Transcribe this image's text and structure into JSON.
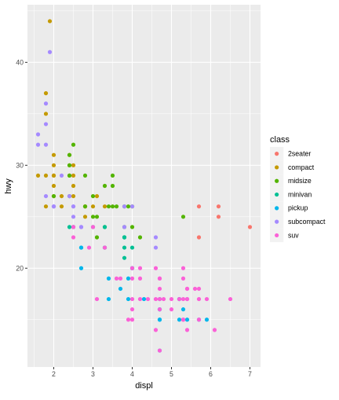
{
  "chart_data": {
    "type": "scatter",
    "xlabel": "displ",
    "ylabel": "hwy",
    "xlim": [
      1.33,
      7.27
    ],
    "ylim": [
      10.4,
      45.6
    ],
    "x_ticks": [
      2,
      3,
      4,
      5,
      6,
      7
    ],
    "y_ticks": [
      20,
      30,
      40
    ],
    "x_tick_labels": [
      "2",
      "3",
      "4",
      "5",
      "6",
      "7"
    ],
    "y_tick_labels": [
      "20",
      "30",
      "40"
    ],
    "grid": true,
    "legend": {
      "title": "class",
      "placement": "right",
      "entries": [
        "2seater",
        "compact",
        "midsize",
        "minivan",
        "pickup",
        "subcompact",
        "suv"
      ]
    },
    "colors": {
      "panel_background": "#ebebeb",
      "grid": "#ffffff",
      "2seater": "#F8766D",
      "compact": "#C49A00",
      "midsize": "#53B400",
      "minivan": "#00C094",
      "pickup": "#00B6EB",
      "subcompact": "#A58AFF",
      "suv": "#FB61D7"
    },
    "series": [
      {
        "name": "2seater",
        "points": [
          [
            5.7,
            26
          ],
          [
            6.2,
            26
          ],
          [
            6.2,
            25
          ],
          [
            5.7,
            23
          ],
          [
            7.0,
            24
          ]
        ]
      },
      {
        "name": "compact",
        "points": [
          [
            1.8,
            29
          ],
          [
            1.8,
            26
          ],
          [
            2.0,
            30
          ],
          [
            2.0,
            31
          ],
          [
            2.8,
            26
          ],
          [
            2.8,
            25
          ],
          [
            3.1,
            27
          ],
          [
            1.8,
            37
          ],
          [
            1.8,
            35
          ],
          [
            2.0,
            29
          ],
          [
            2.2,
            27
          ],
          [
            2.4,
            31
          ],
          [
            2.4,
            30
          ],
          [
            2.5,
            30
          ],
          [
            2.5,
            29
          ],
          [
            2.5,
            27
          ],
          [
            2.2,
            26
          ],
          [
            2.4,
            29
          ],
          [
            3.0,
            26
          ],
          [
            3.3,
            26
          ],
          [
            2.0,
            29
          ],
          [
            2.0,
            28
          ],
          [
            2.8,
            26
          ],
          [
            1.9,
            44
          ],
          [
            2.5,
            28
          ],
          [
            2.0,
            27
          ],
          [
            1.6,
            29
          ]
        ]
      },
      {
        "name": "midsize",
        "points": [
          [
            2.4,
            31
          ],
          [
            2.4,
            30
          ],
          [
            2.5,
            32
          ],
          [
            3.0,
            27
          ],
          [
            3.5,
            29
          ],
          [
            3.3,
            28
          ],
          [
            3.8,
            26
          ],
          [
            3.5,
            26
          ],
          [
            3.0,
            25
          ],
          [
            2.4,
            29
          ],
          [
            2.4,
            27
          ],
          [
            3.1,
            25
          ],
          [
            3.4,
            26
          ],
          [
            3.8,
            24
          ],
          [
            3.9,
            26
          ],
          [
            4.0,
            24
          ],
          [
            4.2,
            23
          ],
          [
            5.3,
            25
          ],
          [
            2.8,
            26
          ],
          [
            3.5,
            28
          ],
          [
            3.6,
            26
          ],
          [
            4.0,
            26
          ],
          [
            3.3,
            24
          ],
          [
            3.1,
            23
          ],
          [
            3.8,
            23
          ],
          [
            2.5,
            24
          ],
          [
            2.0,
            27
          ],
          [
            2.8,
            29
          ]
        ]
      },
      {
        "name": "minivan",
        "points": [
          [
            2.4,
            24
          ],
          [
            3.0,
            24
          ],
          [
            3.3,
            24
          ],
          [
            3.3,
            22
          ],
          [
            3.8,
            21
          ],
          [
            3.8,
            23
          ],
          [
            3.8,
            22
          ],
          [
            4.0,
            20
          ],
          [
            3.3,
            22
          ],
          [
            3.8,
            23
          ],
          [
            4.0,
            22
          ]
        ]
      },
      {
        "name": "pickup",
        "points": [
          [
            2.7,
            20
          ],
          [
            2.7,
            22
          ],
          [
            3.4,
            19
          ],
          [
            3.4,
            17
          ],
          [
            3.7,
            18
          ],
          [
            3.9,
            17
          ],
          [
            4.0,
            20
          ],
          [
            4.3,
            17
          ],
          [
            4.7,
            16
          ],
          [
            4.7,
            15
          ],
          [
            5.2,
            15
          ],
          [
            5.2,
            17
          ],
          [
            5.7,
            15
          ],
          [
            5.9,
            15
          ],
          [
            4.7,
            15
          ],
          [
            4.7,
            16
          ],
          [
            4.7,
            17
          ],
          [
            5.4,
            15
          ],
          [
            5.3,
            16
          ],
          [
            5.2,
            17
          ],
          [
            3.9,
            19
          ],
          [
            4.7,
            12
          ],
          [
            2.7,
            22
          ]
        ]
      },
      {
        "name": "subcompact",
        "points": [
          [
            1.9,
            41
          ],
          [
            1.6,
            33
          ],
          [
            1.6,
            32
          ],
          [
            1.8,
            36
          ],
          [
            2.0,
            26
          ],
          [
            1.8,
            32
          ],
          [
            2.5,
            25
          ],
          [
            2.2,
            29
          ],
          [
            2.0,
            26
          ],
          [
            2.4,
            27
          ],
          [
            1.8,
            27
          ],
          [
            2.7,
            24
          ],
          [
            2.0,
            26
          ],
          [
            2.5,
            26
          ],
          [
            1.8,
            34
          ],
          [
            3.8,
            26
          ],
          [
            4.6,
            23
          ],
          [
            4.6,
            22
          ],
          [
            5.4,
            17
          ],
          [
            2.5,
            24
          ],
          [
            2.5,
            26
          ],
          [
            2.7,
            24
          ],
          [
            3.8,
            24
          ],
          [
            4.0,
            26
          ]
        ]
      },
      {
        "name": "suv",
        "points": [
          [
            5.3,
            20
          ],
          [
            5.3,
            15
          ],
          [
            5.7,
            18
          ],
          [
            6.5,
            17
          ],
          [
            4.0,
            19
          ],
          [
            4.7,
            12
          ],
          [
            5.9,
            17
          ],
          [
            4.7,
            19
          ],
          [
            4.7,
            19
          ],
          [
            5.2,
            17
          ],
          [
            4.6,
            17
          ],
          [
            5.4,
            17
          ],
          [
            4.0,
            16
          ],
          [
            4.6,
            20
          ],
          [
            5.0,
            17
          ],
          [
            4.2,
            17
          ],
          [
            4.4,
            17
          ],
          [
            5.4,
            18
          ],
          [
            4.7,
            17
          ],
          [
            4.7,
            16
          ],
          [
            4.0,
            15
          ],
          [
            4.0,
            20
          ],
          [
            2.5,
            23
          ],
          [
            2.5,
            24
          ],
          [
            3.3,
            22
          ],
          [
            3.7,
            19
          ],
          [
            3.9,
            15
          ],
          [
            4.7,
            18
          ],
          [
            4.8,
            17
          ],
          [
            5.3,
            19
          ],
          [
            5.4,
            18
          ],
          [
            5.6,
            18
          ],
          [
            5.7,
            15
          ],
          [
            6.1,
            14
          ],
          [
            5.0,
            16
          ],
          [
            4.0,
            17
          ],
          [
            4.2,
            20
          ],
          [
            5.4,
            14
          ],
          [
            5.3,
            15
          ],
          [
            3.1,
            17
          ],
          [
            3.6,
            19
          ],
          [
            4.2,
            19
          ],
          [
            5.7,
            17
          ],
          [
            5.3,
            17
          ],
          [
            4.6,
            14
          ],
          [
            2.9,
            22
          ],
          [
            3.0,
            24
          ]
        ]
      }
    ]
  }
}
